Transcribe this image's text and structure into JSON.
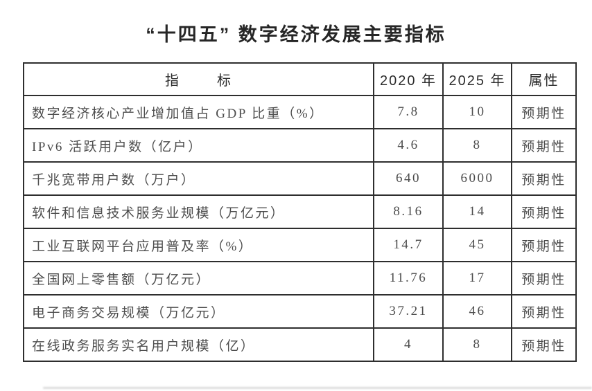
{
  "title": "“十四五” 数字经济发展主要指标",
  "table": {
    "headers": {
      "indicator": "指       标",
      "y2020": "2020 年",
      "y2025": "2025 年",
      "attribute": "属性"
    },
    "rows": [
      {
        "indicator": "数字经济核心产业增加值占 GDP 比重（%）",
        "y2020": "7.8",
        "y2025": "10",
        "attribute": "预期性"
      },
      {
        "indicator": "IPv6 活跃用户数（亿户）",
        "y2020": "4.6",
        "y2025": "8",
        "attribute": "预期性"
      },
      {
        "indicator": "千兆宽带用户数（万户）",
        "y2020": "640",
        "y2025": "6000",
        "attribute": "预期性"
      },
      {
        "indicator": "软件和信息技术服务业规模（万亿元）",
        "y2020": "8.16",
        "y2025": "14",
        "attribute": "预期性"
      },
      {
        "indicator": "工业互联网平台应用普及率（%）",
        "y2020": "14.7",
        "y2025": "45",
        "attribute": "预期性"
      },
      {
        "indicator": "全国网上零售额（万亿元）",
        "y2020": "11.76",
        "y2025": "17",
        "attribute": "预期性"
      },
      {
        "indicator": "电子商务交易规模（万亿元）",
        "y2020": "37.21",
        "y2025": "46",
        "attribute": "预期性"
      },
      {
        "indicator": "在线政务服务实名用户规模（亿）",
        "y2020": "4",
        "y2025": "8",
        "attribute": "预期性"
      }
    ]
  },
  "colors": {
    "background": "#ffffff",
    "border": "#2e2e2e",
    "title_text": "#262626",
    "header_text": "#2b2b2b",
    "cell_text": "#4d4d4d",
    "artifact_gray": "#dcdcdc"
  }
}
